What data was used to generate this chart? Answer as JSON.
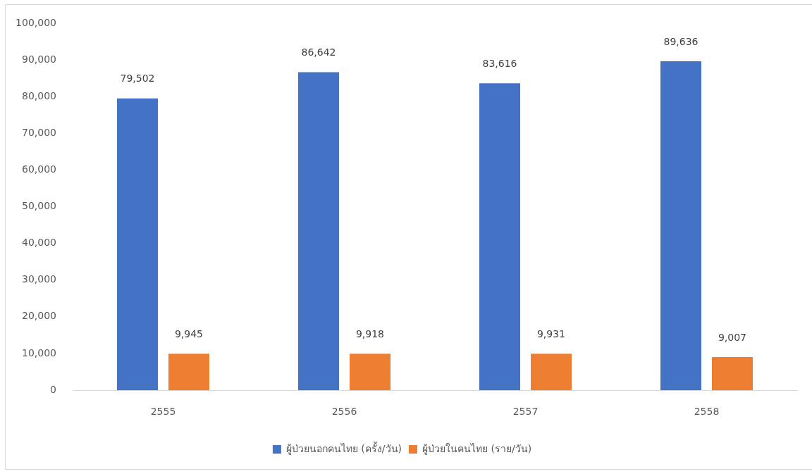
{
  "chart_data": {
    "type": "bar",
    "categories": [
      "2555",
      "2556",
      "2557",
      "2558"
    ],
    "series": [
      {
        "name": "ผู้ป่วยนอกคนไทย (ครั้ง/วัน)",
        "color": "#4472c4",
        "values": [
          79502,
          86642,
          83616,
          89636
        ],
        "value_labels": [
          "79,502",
          "86,642",
          "83,616",
          "89,636"
        ]
      },
      {
        "name": "ผู้ป่วยในคนไทย (ราย/วัน)",
        "color": "#ed7d31",
        "values": [
          9945,
          9918,
          9931,
          9007
        ],
        "value_labels": [
          "9,945",
          "9,918",
          "9,931",
          "9,007"
        ]
      }
    ],
    "ylim": [
      0,
      100000
    ],
    "yticks": [
      0,
      {
        "value": 10000,
        "label": "10,000"
      },
      {
        "value": 20000,
        "label": "20,000"
      },
      {
        "value": 30000,
        "label": "30,000"
      },
      {
        "value": 40000,
        "label": "40,000"
      },
      {
        "value": 50000,
        "label": "50,000"
      },
      {
        "value": 60000,
        "label": "60,000"
      },
      {
        "value": 70000,
        "label": "70,000"
      },
      {
        "value": 80000,
        "label": "80,000"
      },
      {
        "value": 90000,
        "label": "90,000"
      },
      {
        "value": 100000,
        "label": "100,000"
      }
    ],
    "grid": false,
    "legend": "bottom"
  }
}
